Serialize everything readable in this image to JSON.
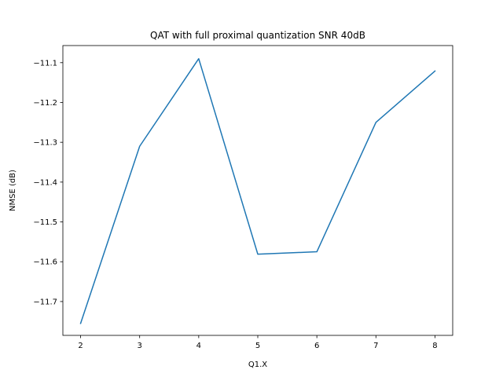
{
  "chart_data": {
    "type": "line",
    "title": "QAT with full proximal quantization SNR 40dB",
    "xlabel": "Q1.X",
    "ylabel": "NMSE (dB)",
    "xlim": [
      1.7,
      8.3
    ],
    "ylim": [
      -11.785,
      -11.057
    ],
    "x_ticks": [
      2,
      3,
      4,
      5,
      6,
      7,
      8
    ],
    "x_tick_labels": [
      "2",
      "3",
      "4",
      "5",
      "6",
      "7",
      "8"
    ],
    "y_ticks": [
      -11.7,
      -11.6,
      -11.5,
      -11.4,
      -11.3,
      -11.2,
      -11.1
    ],
    "y_tick_labels": [
      "−11.7",
      "−11.6",
      "−11.5",
      "−11.4",
      "−11.3",
      "−11.2",
      "−11.1"
    ],
    "grid": false,
    "legend": "none",
    "x": [
      2,
      3,
      4,
      5,
      6,
      7,
      8
    ],
    "series": [
      {
        "color": "#1f77b4",
        "values": [
          -11.755,
          -11.31,
          -11.09,
          -11.581,
          -11.575,
          -11.25,
          -11.121
        ]
      }
    ]
  }
}
